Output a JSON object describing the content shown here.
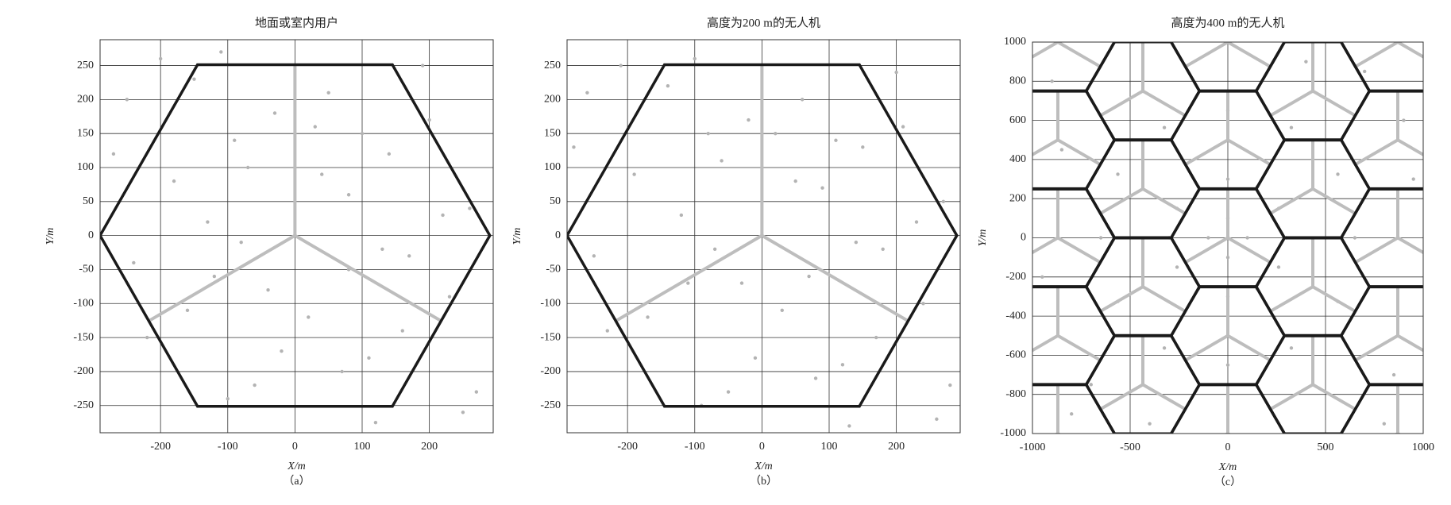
{
  "chart_data": [
    {
      "type": "scatter",
      "title": "地面或室内用户",
      "xlabel": "X/m",
      "ylabel": "Y/m",
      "caption": "（a）",
      "xlim": [
        -290,
        295
      ],
      "ylim": [
        -290,
        288
      ],
      "xticks": [
        -200,
        -100,
        0,
        100,
        200
      ],
      "yticks": [
        -250,
        -200,
        -150,
        -100,
        -50,
        0,
        50,
        100,
        150,
        200,
        250
      ],
      "grid": true,
      "color": "#b3b3b3",
      "edge_color": "#1a1a1a",
      "points": {
        "x": [
          -250,
          -220,
          -180,
          -150,
          -120,
          -90,
          -60,
          -30,
          20,
          50,
          80,
          110,
          140,
          170,
          200,
          230,
          260,
          -240,
          -200,
          -160,
          -130,
          -100,
          -70,
          -40,
          40,
          70,
          100,
          130,
          160,
          190,
          220,
          250,
          -80,
          80,
          -20,
          30,
          -270,
          270,
          -110,
          120
        ],
        "y": [
          200,
          -150,
          80,
          230,
          -60,
          140,
          -220,
          180,
          -120,
          210,
          60,
          -180,
          120,
          -30,
          170,
          -90,
          40,
          -40,
          260,
          -110,
          20,
          -240,
          100,
          -80,
          90,
          -200,
          150,
          -20,
          -140,
          250,
          30,
          -260,
          -10,
          -50,
          -170,
          160,
          120,
          -230,
          270,
          -275
        ]
      },
      "cells": {
        "x": [
          0
        ],
        "y": [
          0
        ]
      },
      "cell_radius": 290,
      "sector_angles": [
        90,
        210,
        330
      ]
    },
    {
      "type": "scatter",
      "title": "高度为200 m的无人机",
      "xlabel": "X/m",
      "ylabel": "Y/m",
      "caption": "（b）",
      "xlim": [
        -290,
        295
      ],
      "ylim": [
        -290,
        288
      ],
      "xticks": [
        -200,
        -100,
        0,
        100,
        200
      ],
      "yticks": [
        -250,
        -200,
        -150,
        -100,
        -50,
        0,
        50,
        100,
        150,
        200,
        250
      ],
      "grid": true,
      "color": "#b3b3b3",
      "edge_color": "#1a1a1a",
      "points": {
        "x": [
          -260,
          -230,
          -190,
          -140,
          -110,
          -80,
          -50,
          -20,
          30,
          60,
          90,
          120,
          150,
          180,
          210,
          240,
          270,
          -250,
          -210,
          -170,
          -120,
          -90,
          -60,
          -30,
          50,
          80,
          110,
          140,
          170,
          200,
          230,
          260,
          -70,
          70,
          -10,
          20,
          -280,
          280,
          -100,
          130
        ],
        "y": [
          210,
          -140,
          90,
          220,
          -70,
          150,
          -230,
          170,
          -110,
          200,
          70,
          -190,
          130,
          -20,
          160,
          -100,
          50,
          -30,
          250,
          -120,
          30,
          -250,
          110,
          -70,
          80,
          -210,
          140,
          -10,
          -150,
          240,
          20,
          -270,
          -20,
          -60,
          -180,
          150,
          130,
          -220,
          260,
          -280
        ]
      },
      "cells": {
        "x": [
          0
        ],
        "y": [
          0
        ]
      },
      "cell_radius": 290,
      "sector_angles": [
        90,
        210,
        330
      ]
    },
    {
      "type": "scatter",
      "title": "高度为400 m的无人机",
      "xlabel": "X/m",
      "ylabel": "Y/m",
      "caption": "（c）",
      "xlim": [
        -1000,
        1000
      ],
      "ylim": [
        -1000,
        1000
      ],
      "xticks": [
        -1000,
        -500,
        0,
        500,
        1000
      ],
      "yticks": [
        -1000,
        -800,
        -600,
        -400,
        -200,
        0,
        200,
        400,
        600,
        800,
        1000
      ],
      "grid": true,
      "color": "#b3b3b3",
      "edge_color": "#1a1a1a",
      "points": {
        "x": [
          300,
          260,
          150,
          0,
          -150,
          -260,
          -300,
          -260,
          -150,
          0,
          150,
          260,
          650,
          563,
          325,
          0,
          -325,
          -563,
          -650,
          -563,
          -325,
          0,
          325,
          563,
          100,
          0,
          -100,
          0,
          -900,
          850,
          -800,
          900,
          -950,
          950,
          400,
          -400,
          700,
          -700,
          800,
          -850
        ],
        "y": [
          0,
          150,
          260,
          300,
          260,
          150,
          0,
          -150,
          -260,
          -300,
          -260,
          -150,
          0,
          325,
          563,
          650,
          563,
          325,
          0,
          -325,
          -563,
          -650,
          -563,
          -325,
          0,
          100,
          0,
          -100,
          800,
          -700,
          -900,
          600,
          -200,
          300,
          900,
          -950,
          850,
          -750,
          -950,
          450
        ]
      },
      "cells": {
        "x": [
          0,
          0,
          0,
          0,
          0,
          435,
          435,
          435,
          435,
          -435,
          -435,
          -435,
          -435,
          870,
          870,
          870,
          870,
          870,
          -870,
          -870,
          -870,
          -870,
          -870
        ],
        "y": [
          0,
          500,
          -500,
          1000,
          -1000,
          250,
          -250,
          750,
          -750,
          250,
          -250,
          750,
          -750,
          0,
          500,
          -500,
          1000,
          -1000,
          0,
          500,
          -500,
          1000,
          -1000
        ]
      },
      "cell_radius": 290,
      "sector_angles": [
        90,
        210,
        330
      ]
    }
  ]
}
